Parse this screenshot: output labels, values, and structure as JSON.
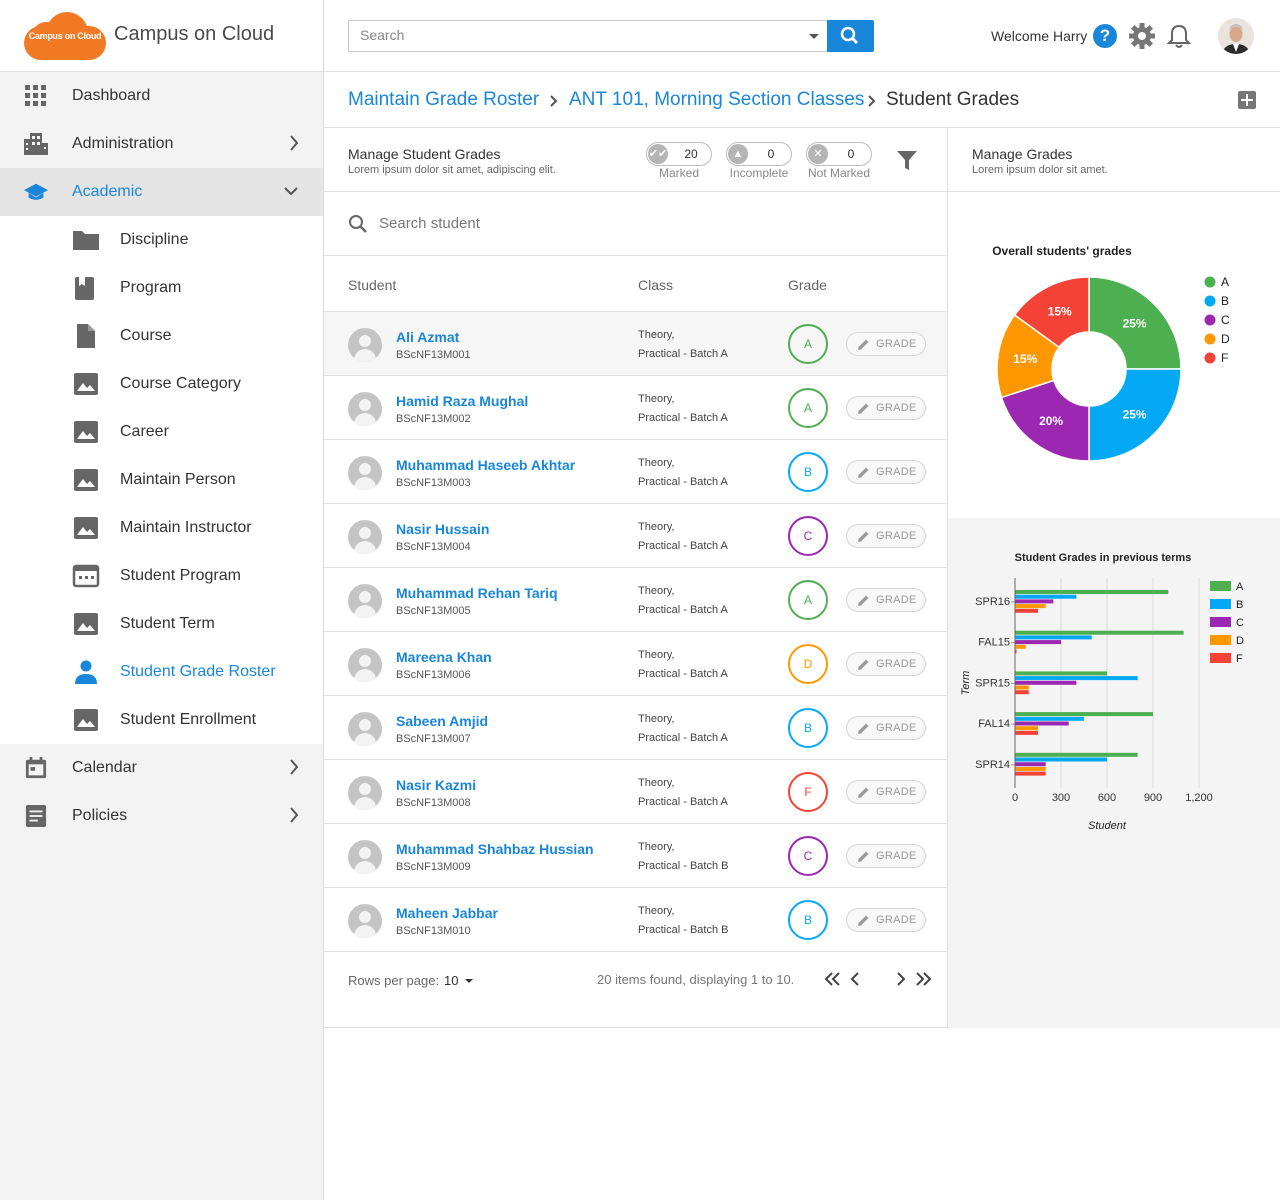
{
  "app": {
    "logo_text": "Campus on Cloud",
    "name": "Campus on Cloud"
  },
  "header": {
    "search_placeholder": "Search",
    "welcome": "Welcome Harry",
    "help_glyph": "?"
  },
  "sidebar": {
    "items": [
      {
        "label": "Dashboard",
        "icon": "grid-icon"
      },
      {
        "label": "Administration",
        "icon": "building-icon"
      },
      {
        "label": "Academic",
        "icon": "graduation-cap-icon"
      }
    ],
    "academic_sub": [
      {
        "label": "Discipline",
        "icon": "folder-icon"
      },
      {
        "label": "Program",
        "icon": "book-icon"
      },
      {
        "label": "Course",
        "icon": "file-icon"
      },
      {
        "label": "Course Category",
        "icon": "image-icon"
      },
      {
        "label": "Career",
        "icon": "image-icon"
      },
      {
        "label": "Maintain Person",
        "icon": "image-icon"
      },
      {
        "label": "Maintain Instructor",
        "icon": "image-icon"
      },
      {
        "label": "Student Program",
        "icon": "calendar-dots-icon"
      },
      {
        "label": "Student Term",
        "icon": "image-icon"
      },
      {
        "label": "Student Grade Roster",
        "icon": "person-icon"
      },
      {
        "label": "Student Enrollment",
        "icon": "image-icon"
      }
    ],
    "bottom": [
      {
        "label": "Calendar",
        "icon": "calendar-icon"
      },
      {
        "label": "Policies",
        "icon": "document-icon"
      }
    ]
  },
  "breadcrumb": {
    "items": [
      "Maintain Grade Roster",
      "ANT 101, Morning Section Classes",
      "Student Grades"
    ]
  },
  "manage_students": {
    "title": "Manage Student Grades",
    "subtitle": "Lorem ipsum dolor sit amet, adipiscing elit.",
    "stats": [
      {
        "label": "Marked",
        "value": "20"
      },
      {
        "label": "Incomplete",
        "value": "0"
      },
      {
        "label": "Not Marked",
        "value": "0"
      }
    ],
    "search_placeholder": "Search student",
    "columns": [
      "Student",
      "Class",
      "Grade"
    ],
    "grade_button": "GRADE",
    "rows": [
      {
        "name": "Ali Azmat",
        "id": "BScNF13M001",
        "class1": "Theory,",
        "class2": "Practical - Batch A",
        "grade": "A"
      },
      {
        "name": "Hamid Raza Mughal",
        "id": "BScNF13M002",
        "class1": "Theory,",
        "class2": "Practical - Batch A",
        "grade": "A"
      },
      {
        "name": "Muhammad Haseeb Akhtar",
        "id": "BScNF13M003",
        "class1": "Theory,",
        "class2": "Practical - Batch A",
        "grade": "B"
      },
      {
        "name": "Nasir Hussain",
        "id": "BScNF13M004",
        "class1": "Theory,",
        "class2": "Practical - Batch A",
        "grade": "C"
      },
      {
        "name": "Muhammad Rehan Tariq",
        "id": "BScNF13M005",
        "class1": "Theory,",
        "class2": "Practical - Batch A",
        "grade": "A"
      },
      {
        "name": "Mareena Khan",
        "id": "BScNF13M006",
        "class1": "Theory,",
        "class2": "Practical - Batch A",
        "grade": "D"
      },
      {
        "name": "Sabeen Amjid",
        "id": "BScNF13M007",
        "class1": "Theory,",
        "class2": "Practical - Batch A",
        "grade": "B"
      },
      {
        "name": "Nasir Kazmi",
        "id": "BScNF13M008",
        "class1": "Theory,",
        "class2": "Practical - Batch A",
        "grade": "F"
      },
      {
        "name": "Muhammad Shahbaz Hussian",
        "id": "BScNF13M009",
        "class1": "Theory,",
        "class2": "Practical - Batch B",
        "grade": "C"
      },
      {
        "name": "Maheen Jabbar",
        "id": "BScNF13M010",
        "class1": "Theory,",
        "class2": "Practical - Batch B",
        "grade": "B"
      }
    ],
    "pager": {
      "rows_label": "Rows per page:",
      "rows_value": "10",
      "found": "20 items found, displaying 1 to 10."
    }
  },
  "grade_colors": {
    "A": "#4caf50",
    "B": "#03a9f4",
    "C": "#9c27b0",
    "D": "#ff9800",
    "F": "#f44336"
  },
  "manage_grades": {
    "title": "Manage Grades",
    "subtitle": "Lorem ipsum dolor sit amet."
  },
  "chart_data": [
    {
      "type": "pie",
      "title": "Overall students' grades",
      "categories": [
        "A",
        "B",
        "C",
        "D",
        "F"
      ],
      "values": [
        25,
        25,
        20,
        15,
        15
      ],
      "labels": [
        "25%",
        "25%",
        "20%",
        "15%",
        "15%"
      ],
      "legend": "right"
    },
    {
      "type": "bar",
      "orientation": "horizontal",
      "title": "Student Grades in previous terms",
      "xlabel": "Student",
      "ylabel": "Term",
      "categories": [
        "SPR16",
        "FAL15",
        "SPR15",
        "FAL14",
        "SPR14"
      ],
      "xlim": [
        0,
        1200
      ],
      "xticks": [
        "0",
        "300",
        "600",
        "900",
        "1,200"
      ],
      "legend": "right",
      "series": [
        {
          "name": "A",
          "values": [
            1000,
            1100,
            600,
            900,
            800
          ]
        },
        {
          "name": "B",
          "values": [
            400,
            500,
            800,
            450,
            600
          ]
        },
        {
          "name": "C",
          "values": [
            250,
            300,
            400,
            350,
            200
          ]
        },
        {
          "name": "D",
          "values": [
            200,
            70,
            90,
            150,
            200
          ]
        },
        {
          "name": "F",
          "values": [
            150,
            10,
            90,
            150,
            200
          ]
        }
      ]
    }
  ]
}
